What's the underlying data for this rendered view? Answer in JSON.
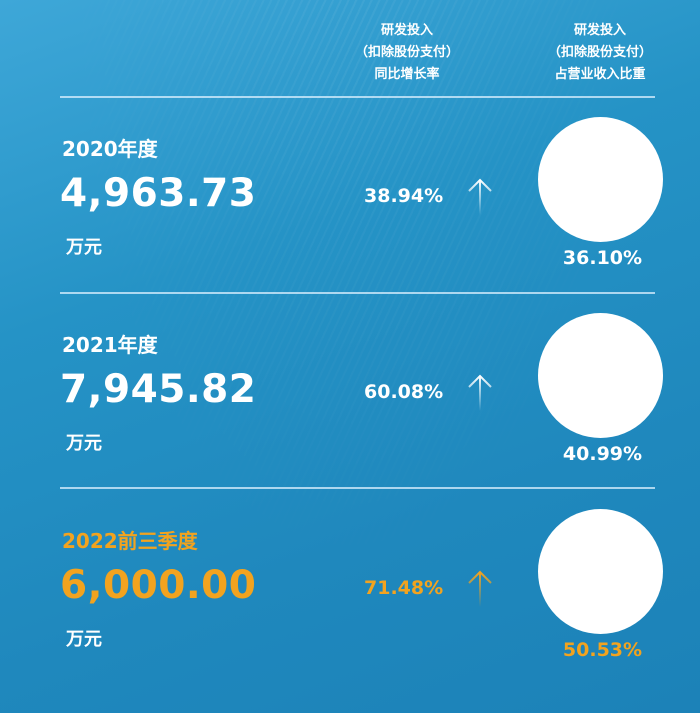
{
  "header": {
    "growth_col": [
      "研发投入",
      "（扣除股份支付）",
      "同比增长率"
    ],
    "ratio_col": [
      "研发投入",
      "（扣除股份支付）",
      "占营业收入比重"
    ]
  },
  "colors": {
    "highlight": "#f2a31f",
    "text": "#ffffff"
  },
  "rows": [
    {
      "year": "2020年度",
      "value": "4,963.73",
      "unit": "万元",
      "growth": "38.94%",
      "ratio": "36.10%",
      "trend_icon": "arrow-up-icon"
    },
    {
      "year": "2021年度",
      "value": "7,945.82",
      "unit": "万元",
      "growth": "60.08%",
      "ratio": "40.99%",
      "trend_icon": "arrow-up-icon"
    },
    {
      "year": "2022前三季度",
      "value": "6,000.00",
      "unit": "万元",
      "growth": "71.48%",
      "ratio": "50.53%",
      "trend_icon": "arrow-up-icon",
      "highlight": true
    }
  ]
}
